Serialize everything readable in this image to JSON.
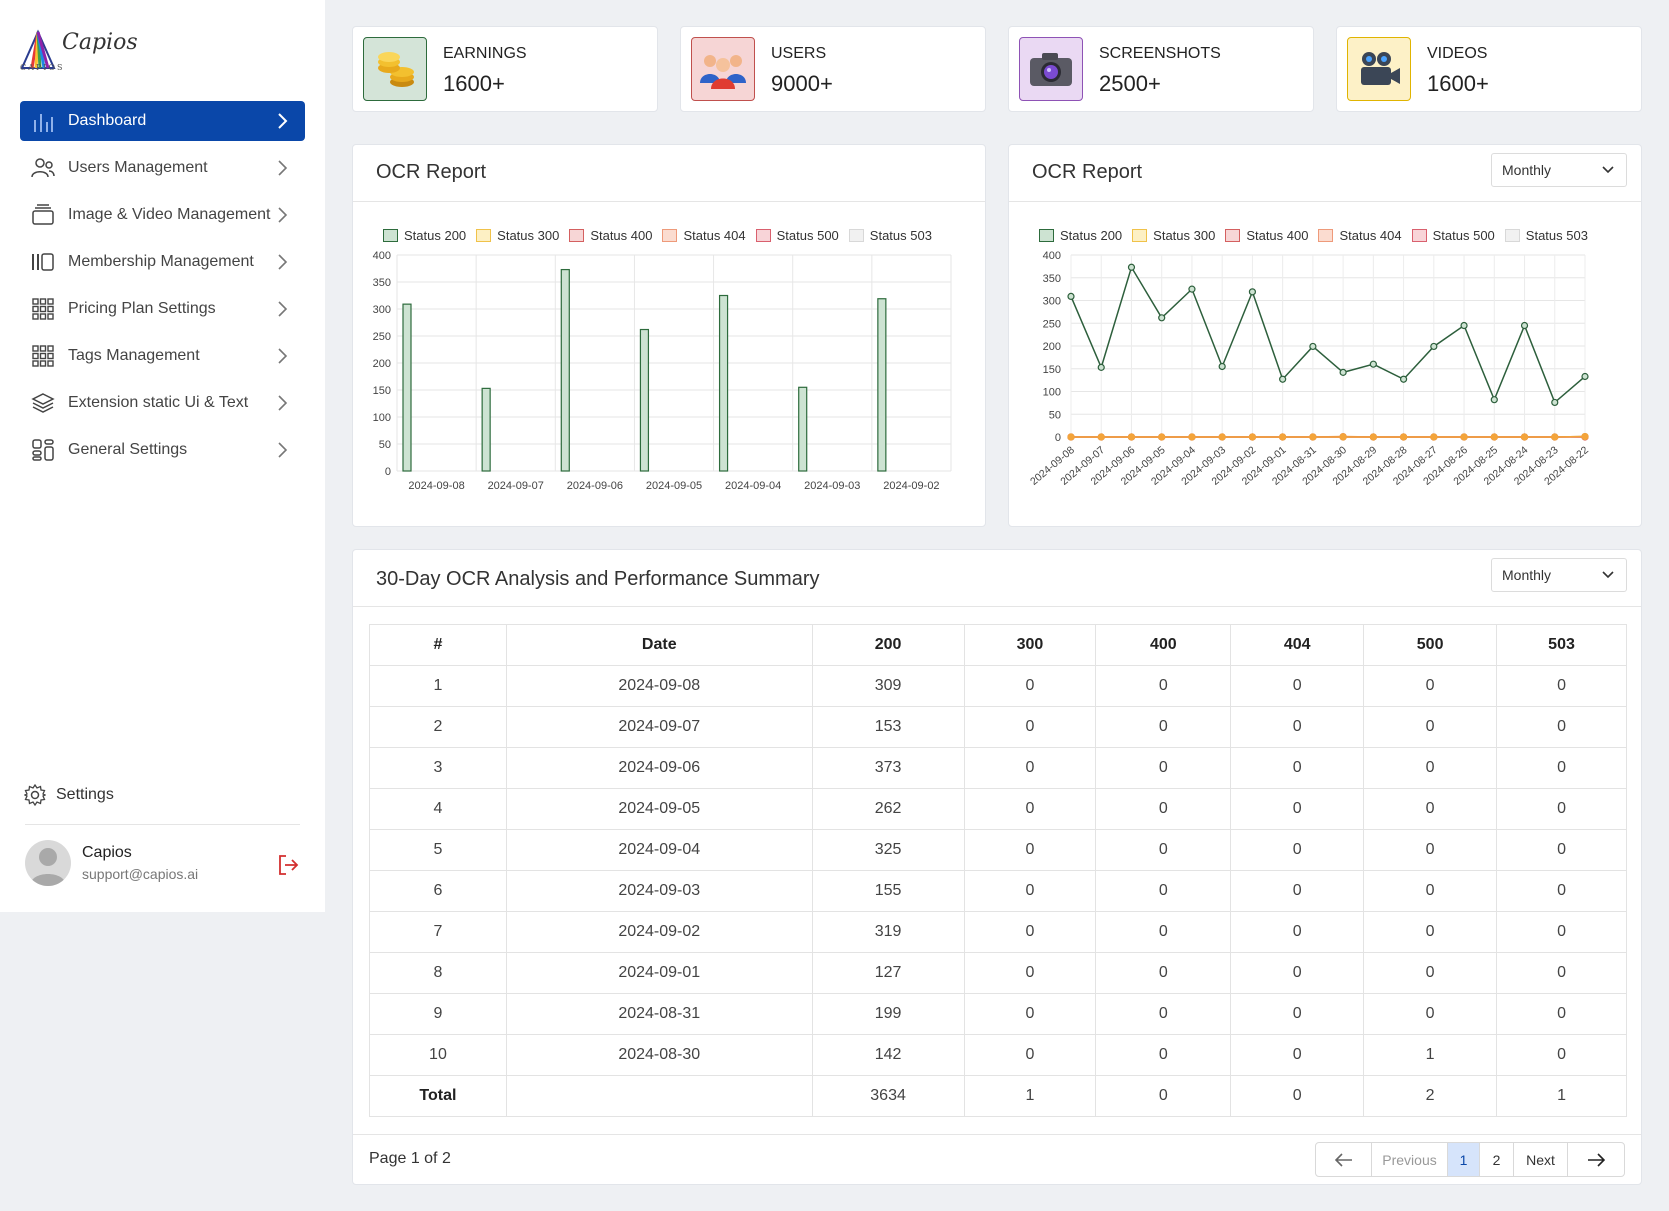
{
  "brand": {
    "name": "Capios",
    "sub": "CAPIOS"
  },
  "nav": [
    {
      "label": "Dashboard",
      "icon": "bar-chart-icon",
      "active": true
    },
    {
      "label": "Users Management",
      "icon": "users-icon"
    },
    {
      "label": "Image & Video Management",
      "icon": "folder-stack-icon"
    },
    {
      "label": "Membership Management",
      "icon": "columns-icon"
    },
    {
      "label": "Pricing Plan Settings",
      "icon": "grid-icon"
    },
    {
      "label": "Tags Management",
      "icon": "grid-icon"
    },
    {
      "label": "Extension static Ui & Text",
      "icon": "layers-icon"
    },
    {
      "label": "General Settings",
      "icon": "apps-icon"
    }
  ],
  "settings_label": "Settings",
  "user": {
    "name": "Capios",
    "email": "support@capios.ai"
  },
  "stats": [
    {
      "label": "EARNINGS",
      "value": "1600+",
      "icon": "coins-icon",
      "bg": "#d4e4d8",
      "border": "#2d6b3c"
    },
    {
      "label": "USERS",
      "value": "9000+",
      "icon": "users-group-icon",
      "bg": "#f6d5d5",
      "border": "#c0504d"
    },
    {
      "label": "SCREENSHOTS",
      "value": "2500+",
      "icon": "camera-icon",
      "bg": "#ead9f3",
      "border": "#8e52b5"
    },
    {
      "label": "VIDEOS",
      "value": "1600+",
      "icon": "video-camera-icon",
      "bg": "#fdf1c7",
      "border": "#e0b400"
    }
  ],
  "chart1": {
    "title": "OCR Report"
  },
  "chart2": {
    "title": "OCR Report",
    "period": "Monthly"
  },
  "legend": [
    {
      "name": "Status 200",
      "fill": "#cde3d2",
      "stroke": "#2d6b3c"
    },
    {
      "name": "Status 300",
      "fill": "#fdf0c4",
      "stroke": "#f0c24a"
    },
    {
      "name": "Status 400",
      "fill": "#f7d6d6",
      "stroke": "#d46060"
    },
    {
      "name": "Status 404",
      "fill": "#fbdcd0",
      "stroke": "#ee9a7a"
    },
    {
      "name": "Status 500",
      "fill": "#f8d4d8",
      "stroke": "#d9606e"
    },
    {
      "name": "Status 503",
      "fill": "#f1f1f1",
      "stroke": "#d8d8d8"
    }
  ],
  "chart_data": [
    {
      "type": "bar",
      "title": "OCR Report",
      "categories": [
        "2024-09-08",
        "2024-09-07",
        "2024-09-06",
        "2024-09-05",
        "2024-09-04",
        "2024-09-03",
        "2024-09-02"
      ],
      "series": [
        {
          "name": "Status 200",
          "values": [
            309,
            153,
            373,
            262,
            325,
            155,
            319
          ]
        },
        {
          "name": "Status 300",
          "values": [
            0,
            0,
            0,
            0,
            0,
            0,
            0
          ]
        },
        {
          "name": "Status 400",
          "values": [
            0,
            0,
            0,
            0,
            0,
            0,
            0
          ]
        },
        {
          "name": "Status 404",
          "values": [
            0,
            0,
            0,
            0,
            0,
            0,
            0
          ]
        },
        {
          "name": "Status 500",
          "values": [
            0,
            0,
            0,
            0,
            0,
            0,
            0
          ]
        },
        {
          "name": "Status 503",
          "values": [
            0,
            0,
            0,
            0,
            0,
            0,
            0
          ]
        }
      ],
      "ylim": [
        0,
        400
      ],
      "yticks": [
        0,
        50,
        100,
        150,
        200,
        250,
        300,
        350,
        400
      ],
      "legend": "top",
      "grid": true
    },
    {
      "type": "line",
      "title": "OCR Report",
      "categories": [
        "2024-09-08",
        "2024-09-07",
        "2024-09-06",
        "2024-09-05",
        "2024-09-04",
        "2024-09-03",
        "2024-09-02",
        "2024-09-01",
        "2024-08-31",
        "2024-08-30",
        "2024-08-29",
        "2024-08-28",
        "2024-08-27",
        "2024-08-26",
        "2024-08-25",
        "2024-08-24",
        "2024-08-23",
        "2024-08-22"
      ],
      "series": [
        {
          "name": "Status 200",
          "values": [
            309,
            153,
            373,
            262,
            325,
            155,
            319,
            127,
            199,
            142,
            160,
            127,
            199,
            245,
            82,
            245,
            76,
            133
          ]
        },
        {
          "name": "Status 300",
          "values": [
            0,
            0,
            0,
            0,
            0,
            0,
            0,
            0,
            0,
            0,
            0,
            0,
            0,
            0,
            0,
            0,
            0,
            1
          ]
        },
        {
          "name": "Status 400",
          "values": [
            0,
            0,
            0,
            0,
            0,
            0,
            0,
            0,
            0,
            0,
            0,
            0,
            0,
            0,
            0,
            0,
            0,
            0
          ]
        },
        {
          "name": "Status 404",
          "values": [
            0,
            0,
            0,
            0,
            0,
            0,
            0,
            0,
            0,
            0,
            0,
            0,
            0,
            0,
            0,
            0,
            0,
            0
          ]
        },
        {
          "name": "Status 500",
          "values": [
            0,
            0,
            0,
            0,
            0,
            0,
            0,
            0,
            0,
            1,
            0,
            0,
            0,
            0,
            0,
            0,
            0,
            1
          ]
        },
        {
          "name": "Status 503",
          "values": [
            0,
            0,
            0,
            0,
            0,
            0,
            0,
            0,
            0,
            0,
            0,
            0,
            0,
            0,
            0,
            0,
            0,
            1
          ]
        }
      ],
      "ylim": [
        0,
        400
      ],
      "yticks": [
        0,
        50,
        100,
        150,
        200,
        250,
        300,
        350,
        400
      ],
      "legend": "top",
      "grid": true
    }
  ],
  "table": {
    "title": "30-Day OCR Analysis and Performance Summary",
    "period": "Monthly",
    "headers": [
      "#",
      "Date",
      "200",
      "300",
      "400",
      "404",
      "500",
      "503"
    ],
    "rows": [
      [
        "1",
        "2024-09-08",
        "309",
        "0",
        "0",
        "0",
        "0",
        "0"
      ],
      [
        "2",
        "2024-09-07",
        "153",
        "0",
        "0",
        "0",
        "0",
        "0"
      ],
      [
        "3",
        "2024-09-06",
        "373",
        "0",
        "0",
        "0",
        "0",
        "0"
      ],
      [
        "4",
        "2024-09-05",
        "262",
        "0",
        "0",
        "0",
        "0",
        "0"
      ],
      [
        "5",
        "2024-09-04",
        "325",
        "0",
        "0",
        "0",
        "0",
        "0"
      ],
      [
        "6",
        "2024-09-03",
        "155",
        "0",
        "0",
        "0",
        "0",
        "0"
      ],
      [
        "7",
        "2024-09-02",
        "319",
        "0",
        "0",
        "0",
        "0",
        "0"
      ],
      [
        "8",
        "2024-09-01",
        "127",
        "0",
        "0",
        "0",
        "0",
        "0"
      ],
      [
        "9",
        "2024-08-31",
        "199",
        "0",
        "0",
        "0",
        "0",
        "0"
      ],
      [
        "10",
        "2024-08-30",
        "142",
        "0",
        "0",
        "0",
        "1",
        "0"
      ]
    ],
    "total": [
      "Total",
      "",
      "3634",
      "1",
      "0",
      "0",
      "2",
      "1"
    ],
    "page_info": "Page 1 of 2",
    "pager": {
      "prev": "Previous",
      "pages": [
        "1",
        "2"
      ],
      "next": "Next",
      "current": "1"
    }
  }
}
